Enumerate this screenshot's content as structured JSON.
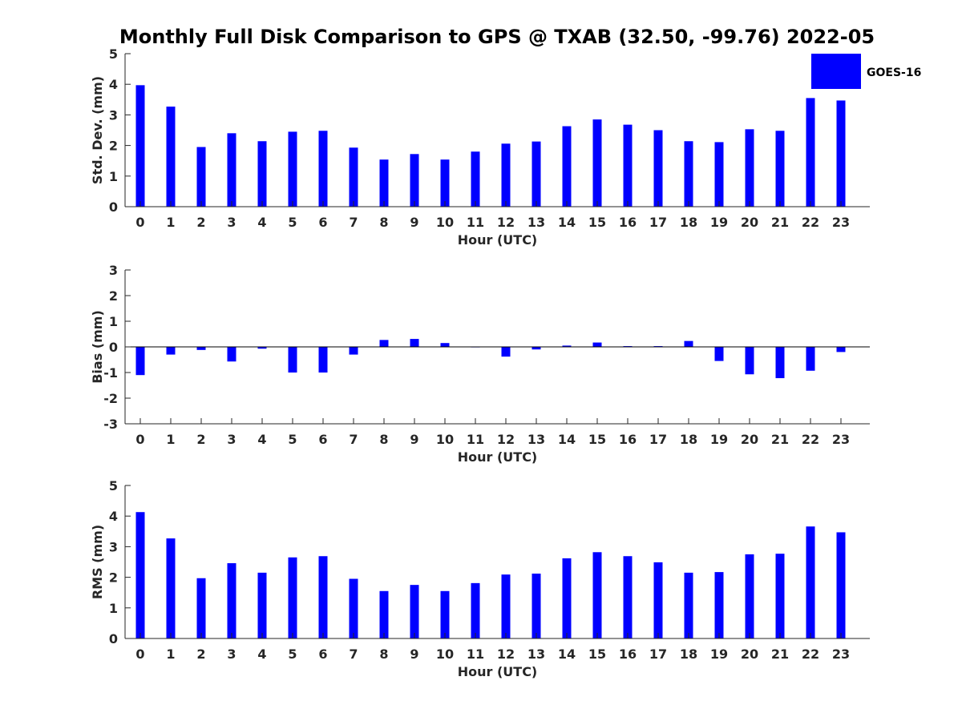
{
  "figure": {
    "title": "Monthly Full Disk Comparison to GPS @ TXAB (32.50, -99.76) 2022-05",
    "legend": {
      "label": "GOES-16",
      "color": "#0000ff"
    }
  },
  "chart_data": [
    {
      "type": "bar",
      "name": "std-dev",
      "categories": [
        "0",
        "1",
        "2",
        "3",
        "4",
        "5",
        "6",
        "7",
        "8",
        "9",
        "10",
        "11",
        "12",
        "13",
        "14",
        "15",
        "16",
        "17",
        "18",
        "19",
        "20",
        "21",
        "22",
        "23"
      ],
      "series": [
        {
          "name": "GOES-16",
          "color": "#0000ff",
          "values": [
            3.97,
            3.27,
            1.95,
            2.4,
            2.14,
            2.45,
            2.48,
            1.93,
            1.54,
            1.72,
            1.54,
            1.8,
            2.06,
            2.13,
            2.63,
            2.85,
            2.68,
            2.5,
            2.14,
            2.11,
            2.53,
            2.48,
            3.55,
            3.47
          ]
        }
      ],
      "xlabel": "Hour (UTC)",
      "ylabel": "Std. Dev. (mm)",
      "ylim": [
        0,
        5
      ],
      "yticks": [
        "0",
        "1",
        "2",
        "3",
        "4",
        "5"
      ],
      "grid": false
    },
    {
      "type": "bar",
      "name": "bias",
      "categories": [
        "0",
        "1",
        "2",
        "3",
        "4",
        "5",
        "6",
        "7",
        "8",
        "9",
        "10",
        "11",
        "12",
        "13",
        "14",
        "15",
        "16",
        "17",
        "18",
        "19",
        "20",
        "21",
        "22",
        "23"
      ],
      "series": [
        {
          "name": "GOES-16",
          "color": "#0000ff",
          "values": [
            -1.1,
            -0.3,
            -0.12,
            -0.57,
            -0.07,
            -1.0,
            -1.0,
            -0.3,
            0.27,
            0.31,
            0.15,
            -0.01,
            -0.38,
            -0.1,
            0.05,
            0.17,
            0.03,
            0.03,
            0.23,
            -0.55,
            -1.07,
            -1.22,
            -0.93,
            -0.2
          ]
        }
      ],
      "xlabel": "Hour (UTC)",
      "ylabel": "Bias (mm)",
      "ylim": [
        -3,
        3
      ],
      "yticks": [
        "-3",
        "-2",
        "-1",
        "0",
        "1",
        "2",
        "3"
      ],
      "zero_line": true,
      "grid": false
    },
    {
      "type": "bar",
      "name": "rms",
      "categories": [
        "0",
        "1",
        "2",
        "3",
        "4",
        "5",
        "6",
        "7",
        "8",
        "9",
        "10",
        "11",
        "12",
        "13",
        "14",
        "15",
        "16",
        "17",
        "18",
        "19",
        "20",
        "21",
        "22",
        "23"
      ],
      "series": [
        {
          "name": "GOES-16",
          "color": "#0000ff",
          "values": [
            4.13,
            3.27,
            1.97,
            2.46,
            2.15,
            2.65,
            2.69,
            1.95,
            1.55,
            1.75,
            1.55,
            1.81,
            2.09,
            2.12,
            2.62,
            2.82,
            2.69,
            2.49,
            2.15,
            2.17,
            2.75,
            2.77,
            3.66,
            3.47
          ]
        }
      ],
      "xlabel": "Hour (UTC)",
      "ylabel": "RMS (mm)",
      "ylim": [
        0,
        5
      ],
      "yticks": [
        "0",
        "1",
        "2",
        "3",
        "4",
        "5"
      ],
      "grid": false
    }
  ]
}
